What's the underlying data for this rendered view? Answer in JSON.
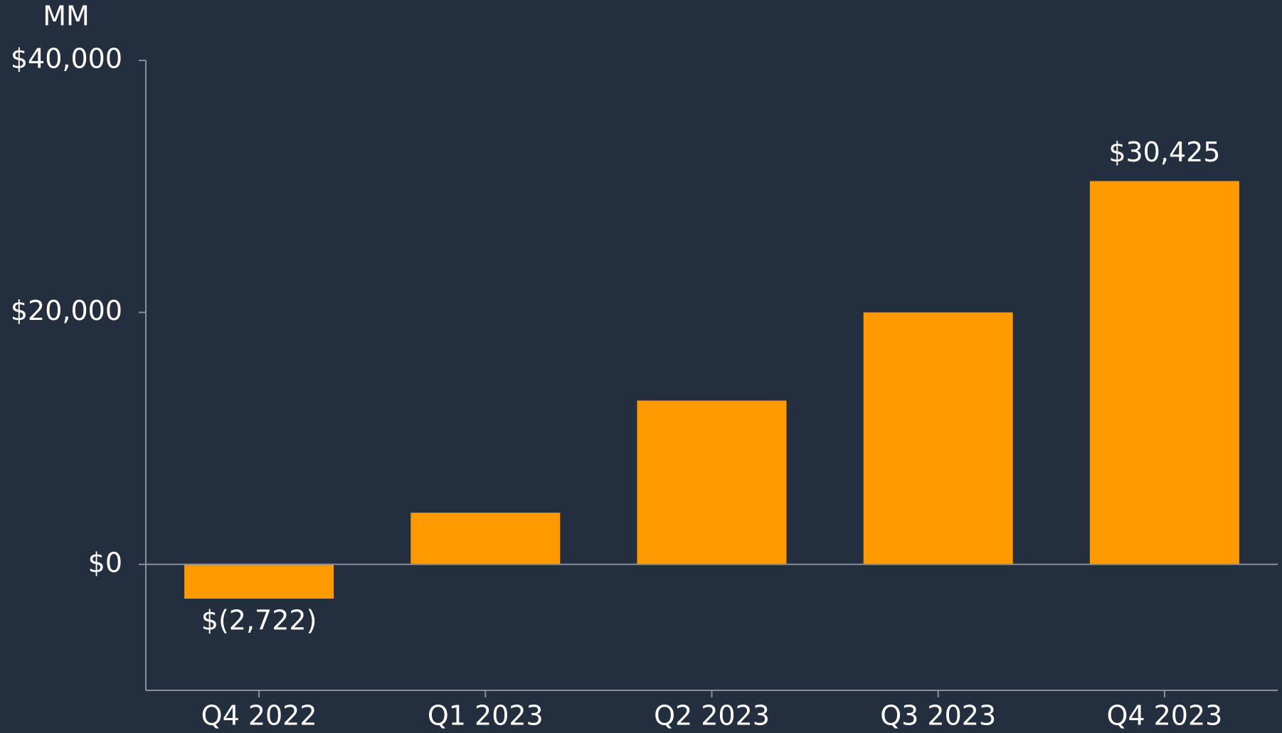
{
  "chart_data": {
    "type": "bar",
    "y_axis_label": "MM",
    "categories": [
      "Q4 2022",
      "Q1 2023",
      "Q2 2023",
      "Q3 2023",
      "Q4 2023"
    ],
    "values": [
      -2722,
      4100,
      13000,
      20000,
      30425
    ],
    "value_labels": [
      "$(2,722)",
      null,
      null,
      null,
      "$30,425"
    ],
    "color": "#ff9900",
    "ylim": [
      -10000,
      40000
    ],
    "yticks": [
      {
        "value": 0,
        "label": "$0"
      },
      {
        "value": 20000,
        "label": "$20,000"
      },
      {
        "value": 40000,
        "label": "$40,000"
      }
    ]
  }
}
